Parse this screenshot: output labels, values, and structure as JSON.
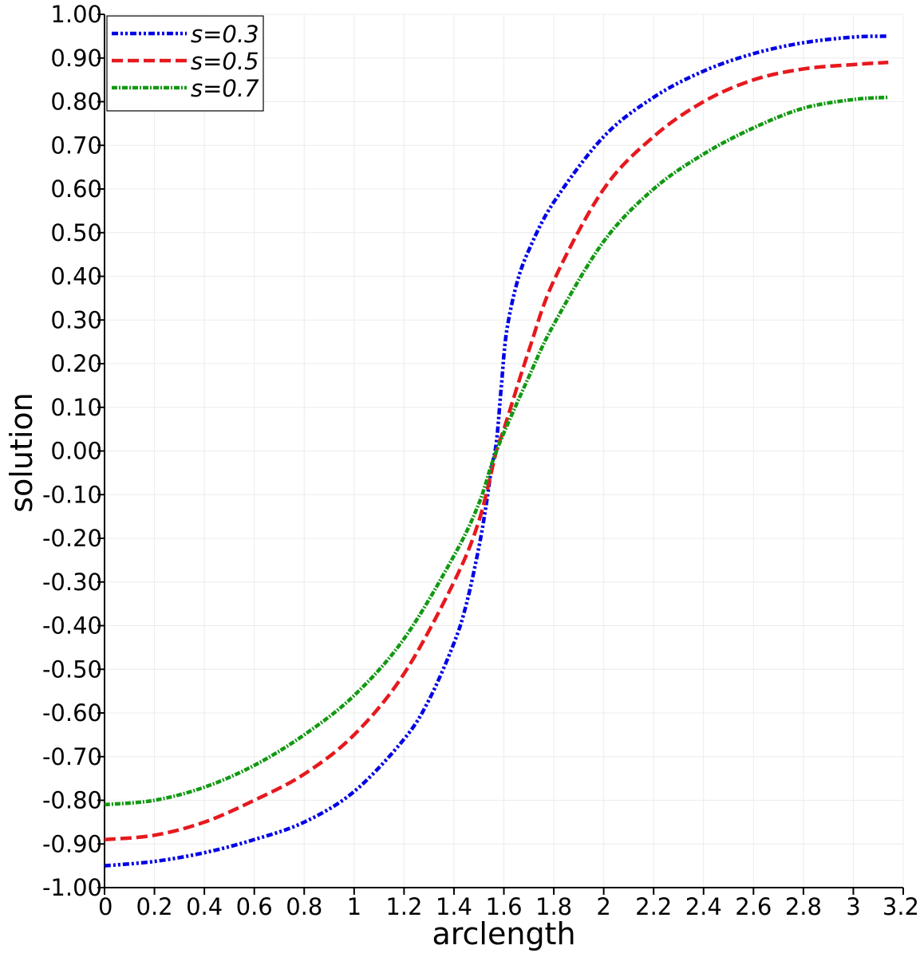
{
  "chart_data": {
    "type": "line",
    "xlabel": "arclength",
    "ylabel": "solution",
    "xlim": [
      0,
      3.2
    ],
    "ylim": [
      -1.0,
      1.0
    ],
    "xticks": [
      0,
      0.2,
      0.4,
      0.6,
      0.8,
      1,
      1.2,
      1.4,
      1.6,
      1.8,
      2,
      2.2,
      2.4,
      2.6,
      2.8,
      3,
      3.2
    ],
    "xtick_labels": [
      "0",
      "0.2",
      "0.4",
      "0.6",
      "0.8",
      "1",
      "1.2",
      "1.4",
      "1.6",
      "1.8",
      "2",
      "2.2",
      "2.4",
      "2.6",
      "2.8",
      "3",
      "3.2"
    ],
    "yticks": [
      -1.0,
      -0.9,
      -0.8,
      -0.7,
      -0.6,
      -0.5,
      -0.4,
      -0.3,
      -0.2,
      -0.1,
      0.0,
      0.1,
      0.2,
      0.3,
      0.4,
      0.5,
      0.6,
      0.7,
      0.8,
      0.9,
      1.0
    ],
    "ytick_labels": [
      "-1.00",
      "-0.90",
      "-0.80",
      "-0.70",
      "-0.60",
      "-0.50",
      "-0.40",
      "-0.30",
      "-0.20",
      "-0.10",
      "0.00",
      "0.10",
      "0.20",
      "0.30",
      "0.40",
      "0.50",
      "0.60",
      "0.70",
      "0.80",
      "0.90",
      "1.00"
    ],
    "grid": true,
    "legend_position": "top-left",
    "series": [
      {
        "name": "s=0.3",
        "color": "#0000e6",
        "style": "dash-dot-dot",
        "x": [
          0,
          0.2,
          0.4,
          0.6,
          0.8,
          1.0,
          1.2,
          1.3,
          1.4,
          1.45,
          1.5,
          1.53,
          1.55,
          1.57,
          1.59,
          1.61,
          1.65,
          1.7,
          1.8,
          2.0,
          2.2,
          2.4,
          2.6,
          2.8,
          3.0,
          3.14
        ],
        "y": [
          -0.95,
          -0.94,
          -0.92,
          -0.89,
          -0.85,
          -0.78,
          -0.66,
          -0.57,
          -0.44,
          -0.35,
          -0.22,
          -0.12,
          -0.04,
          0.02,
          0.15,
          0.27,
          0.38,
          0.46,
          0.57,
          0.72,
          0.81,
          0.87,
          0.91,
          0.935,
          0.948,
          0.95
        ]
      },
      {
        "name": "s=0.5",
        "color": "#e6191e",
        "style": "dashed",
        "x": [
          0,
          0.2,
          0.4,
          0.6,
          0.8,
          1.0,
          1.2,
          1.4,
          1.5,
          1.57,
          1.6,
          1.7,
          1.8,
          2.0,
          2.2,
          2.4,
          2.6,
          2.8,
          3.0,
          3.14
        ],
        "y": [
          -0.89,
          -0.88,
          -0.85,
          -0.8,
          -0.74,
          -0.65,
          -0.51,
          -0.3,
          -0.16,
          0.0,
          0.05,
          0.23,
          0.39,
          0.6,
          0.72,
          0.8,
          0.85,
          0.875,
          0.885,
          0.89
        ]
      },
      {
        "name": "s=0.7",
        "color": "#129912",
        "style": "dash-dot",
        "x": [
          0,
          0.2,
          0.4,
          0.6,
          0.8,
          1.0,
          1.2,
          1.4,
          1.5,
          1.57,
          1.7,
          1.8,
          2.0,
          2.2,
          2.4,
          2.6,
          2.8,
          3.0,
          3.14
        ],
        "y": [
          -0.81,
          -0.8,
          -0.77,
          -0.72,
          -0.65,
          -0.56,
          -0.43,
          -0.24,
          -0.12,
          0.0,
          0.17,
          0.29,
          0.48,
          0.6,
          0.68,
          0.74,
          0.785,
          0.805,
          0.81
        ]
      }
    ]
  }
}
